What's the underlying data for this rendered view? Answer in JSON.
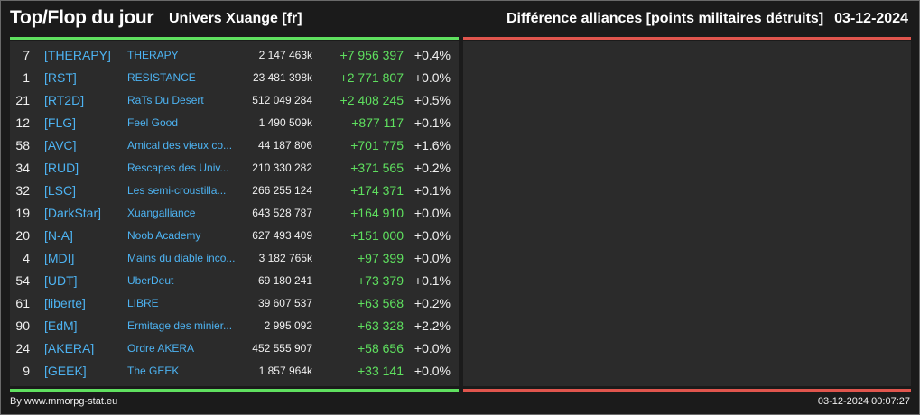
{
  "header": {
    "title": "Top/Flop du jour",
    "universe": "Univers Xuange [fr]",
    "subtitle": "Différence alliances [points militaires détruits]",
    "date": "03-12-2024"
  },
  "colors": {
    "positive": "#5fe05f",
    "negative": "#e0554d",
    "link": "#4db3f2"
  },
  "top_list": [
    {
      "rank": "7",
      "tag": "[THERAPY]",
      "name": "THERAPY",
      "points": "2 147 463k",
      "diff": "+7 956 397",
      "pct": "+0.4%"
    },
    {
      "rank": "1",
      "tag": "[RST]",
      "name": "RESISTANCE",
      "points": "23 481 398k",
      "diff": "+2 771 807",
      "pct": "+0.0%"
    },
    {
      "rank": "21",
      "tag": "[RT2D]",
      "name": "RaTs Du Desert",
      "points": "512 049 284",
      "diff": "+2 408 245",
      "pct": "+0.5%"
    },
    {
      "rank": "12",
      "tag": "[FLG]",
      "name": "Feel Good",
      "points": "1 490 509k",
      "diff": "+877 117",
      "pct": "+0.1%"
    },
    {
      "rank": "58",
      "tag": "[AVC]",
      "name": "Amical des vieux co...",
      "points": "44 187 806",
      "diff": "+701 775",
      "pct": "+1.6%"
    },
    {
      "rank": "34",
      "tag": "[RUD]",
      "name": "Rescapes des Univ...",
      "points": "210 330 282",
      "diff": "+371 565",
      "pct": "+0.2%"
    },
    {
      "rank": "32",
      "tag": "[LSC]",
      "name": "Les semi-croustilla...",
      "points": "266 255 124",
      "diff": "+174 371",
      "pct": "+0.1%"
    },
    {
      "rank": "19",
      "tag": "[DarkStar]",
      "name": "Xuangalliance",
      "points": "643 528 787",
      "diff": "+164 910",
      "pct": "+0.0%"
    },
    {
      "rank": "20",
      "tag": "[N-A]",
      "name": "Noob Academy",
      "points": "627 493 409",
      "diff": "+151 000",
      "pct": "+0.0%"
    },
    {
      "rank": "4",
      "tag": "[MDI]",
      "name": "Mains du diable inco...",
      "points": "3 182 765k",
      "diff": "+97 399",
      "pct": "+0.0%"
    },
    {
      "rank": "54",
      "tag": "[UDT]",
      "name": "UberDeut",
      "points": "69 180 241",
      "diff": "+73 379",
      "pct": "+0.1%"
    },
    {
      "rank": "61",
      "tag": "[liberte]",
      "name": "LIBRE",
      "points": "39 607 537",
      "diff": "+63 568",
      "pct": "+0.2%"
    },
    {
      "rank": "90",
      "tag": "[EdM]",
      "name": "Ermitage des minier...",
      "points": "2 995 092",
      "diff": "+63 328",
      "pct": "+2.2%"
    },
    {
      "rank": "24",
      "tag": "[AKERA]",
      "name": "Ordre AKERA",
      "points": "452 555 907",
      "diff": "+58 656",
      "pct": "+0.0%"
    },
    {
      "rank": "9",
      "tag": "[GEEK]",
      "name": "The GEEK",
      "points": "1 857 964k",
      "diff": "+33 141",
      "pct": "+0.0%"
    }
  ],
  "footer": {
    "credit": "By www.mmorpg-stat.eu",
    "timestamp": "03-12-2024 00:07:27"
  }
}
